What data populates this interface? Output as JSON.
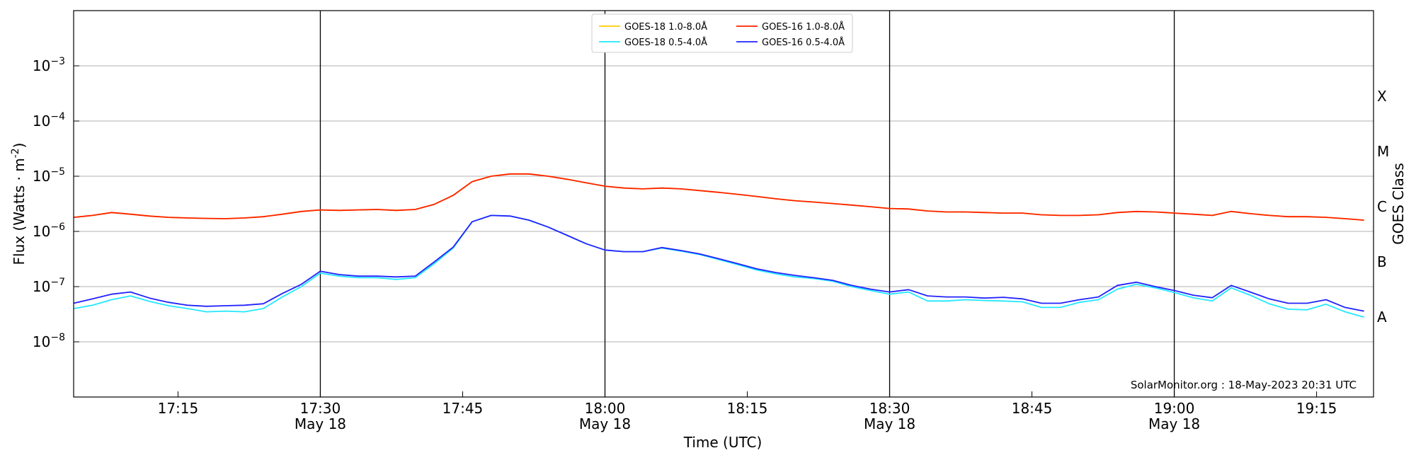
{
  "chart_data": {
    "type": "line",
    "xlabel": "Time (UTC)",
    "ylabel": "Flux (Watts · m",
    "ylabel_sup": "-2",
    "ylabel_close": ")",
    "right_label": "GOES Class",
    "log_y": true,
    "grid": "horizontal",
    "legend_position": "top-center",
    "credit": "SolarMonitor.org : 18-May-2023 20:31 UTC",
    "x_range": [
      "17:04",
      "19:21"
    ],
    "ylim": [
      1e-09,
      0.01
    ],
    "y_ticks": [
      {
        "value": 1e-08,
        "base": "10",
        "exp": "−8"
      },
      {
        "value": 1e-07,
        "base": "10",
        "exp": "−7"
      },
      {
        "value": 1e-06,
        "base": "10",
        "exp": "−6"
      },
      {
        "value": 1e-05,
        "base": "10",
        "exp": "−5"
      },
      {
        "value": 0.0001,
        "base": "10",
        "exp": "−4"
      },
      {
        "value": 0.001,
        "base": "10",
        "exp": "−3"
      }
    ],
    "x_ticks": [
      {
        "time": "17:15",
        "label": "17:15",
        "sub": ""
      },
      {
        "time": "17:30",
        "label": "17:30",
        "sub": "May 18"
      },
      {
        "time": "17:45",
        "label": "17:45",
        "sub": ""
      },
      {
        "time": "18:00",
        "label": "18:00",
        "sub": "May 18"
      },
      {
        "time": "18:15",
        "label": "18:15",
        "sub": ""
      },
      {
        "time": "18:30",
        "label": "18:30",
        "sub": "May 18"
      },
      {
        "time": "18:45",
        "label": "18:45",
        "sub": ""
      },
      {
        "time": "19:00",
        "label": "19:00",
        "sub": "May 18"
      },
      {
        "time": "19:15",
        "label": "19:15",
        "sub": ""
      }
    ],
    "vlines": [
      "17:30",
      "18:00",
      "18:30",
      "19:00"
    ],
    "class_labels": [
      {
        "label": "X",
        "flux": 0.00028
      },
      {
        "label": "M",
        "flux": 2.8e-05
      },
      {
        "label": "C",
        "flux": 2.8e-06
      },
      {
        "label": "B",
        "flux": 2.8e-07
      },
      {
        "label": "A",
        "flux": 2.8e-08
      }
    ],
    "legend": [
      {
        "name": "GOES-18 1.0-8.0Å",
        "color": "#ffcc00"
      },
      {
        "name": "GOES-16 1.0-8.0Å",
        "color": "#ff2200"
      },
      {
        "name": "GOES-18 0.5-4.0Å",
        "color": "#22e8ff"
      },
      {
        "name": "GOES-16 0.5-4.0Å",
        "color": "#2222ff"
      }
    ],
    "series": [
      {
        "name": "GOES-18 1.0-8.0Å",
        "color": "#ffcc00",
        "x": [
          "17:04",
          "17:06",
          "17:08",
          "17:10",
          "17:12",
          "17:14",
          "17:16",
          "17:18",
          "17:20",
          "17:22",
          "17:24",
          "17:26",
          "17:28",
          "17:30",
          "17:32",
          "17:34",
          "17:36",
          "17:38",
          "17:40",
          "17:42",
          "17:44",
          "17:46",
          "17:48",
          "17:50",
          "17:52",
          "17:54",
          "17:56",
          "17:58",
          "18:00",
          "18:02",
          "18:04",
          "18:06",
          "18:08",
          "18:10",
          "18:12",
          "18:14",
          "18:16",
          "18:18",
          "18:20",
          "18:22",
          "18:24",
          "18:26",
          "18:28",
          "18:30",
          "18:32",
          "18:34",
          "18:36",
          "18:38",
          "18:40",
          "18:42",
          "18:44",
          "18:46",
          "18:48",
          "18:50",
          "18:52",
          "18:54",
          "18:56",
          "18:58",
          "19:00",
          "19:02",
          "19:04",
          "19:06",
          "19:08",
          "19:10",
          "19:12",
          "19:14",
          "19:16",
          "19:18",
          "19:20"
        ],
        "y": [
          1.8e-06,
          1.95e-06,
          2.2e-06,
          2.05e-06,
          1.9e-06,
          1.8e-06,
          1.75e-06,
          1.72e-06,
          1.7e-06,
          1.75e-06,
          1.85e-06,
          2.05e-06,
          2.3e-06,
          2.45e-06,
          2.4e-06,
          2.45e-06,
          2.5e-06,
          2.4e-06,
          2.5e-06,
          3.1e-06,
          4.5e-06,
          8e-06,
          1e-05,
          1.1e-05,
          1.1e-05,
          1e-05,
          8.8e-06,
          7.6e-06,
          6.6e-06,
          6.1e-06,
          5.9e-06,
          6.1e-06,
          5.9e-06,
          5.5e-06,
          5.1e-06,
          4.7e-06,
          4.3e-06,
          3.9e-06,
          3.6e-06,
          3.4e-06,
          3.2e-06,
          3e-06,
          2.8e-06,
          2.6e-06,
          2.55e-06,
          2.35e-06,
          2.25e-06,
          2.25e-06,
          2.2e-06,
          2.15e-06,
          2.15e-06,
          2e-06,
          1.95e-06,
          1.95e-06,
          2e-06,
          2.2e-06,
          2.3e-06,
          2.25e-06,
          2.15e-06,
          2.05e-06,
          1.95e-06,
          2.3e-06,
          2.1e-06,
          1.95e-06,
          1.85e-06,
          1.85e-06,
          1.8e-06,
          1.7e-06,
          1.6e-06
        ]
      },
      {
        "name": "GOES-16 1.0-8.0Å",
        "color": "#ff2200",
        "x": [
          "17:04",
          "17:06",
          "17:08",
          "17:10",
          "17:12",
          "17:14",
          "17:16",
          "17:18",
          "17:20",
          "17:22",
          "17:24",
          "17:26",
          "17:28",
          "17:30",
          "17:32",
          "17:34",
          "17:36",
          "17:38",
          "17:40",
          "17:42",
          "17:44",
          "17:46",
          "17:48",
          "17:50",
          "17:52",
          "17:54",
          "17:56",
          "17:58",
          "18:00",
          "18:02",
          "18:04",
          "18:06",
          "18:08",
          "18:10",
          "18:12",
          "18:14",
          "18:16",
          "18:18",
          "18:20",
          "18:22",
          "18:24",
          "18:26",
          "18:28",
          "18:30",
          "18:32",
          "18:34",
          "18:36",
          "18:38",
          "18:40",
          "18:42",
          "18:44",
          "18:46",
          "18:48",
          "18:50",
          "18:52",
          "18:54",
          "18:56",
          "18:58",
          "19:00",
          "19:02",
          "19:04",
          "19:06",
          "19:08",
          "19:10",
          "19:12",
          "19:14",
          "19:16",
          "19:18",
          "19:20"
        ],
        "y": [
          1.8e-06,
          1.95e-06,
          2.2e-06,
          2.05e-06,
          1.9e-06,
          1.8e-06,
          1.75e-06,
          1.72e-06,
          1.7e-06,
          1.75e-06,
          1.85e-06,
          2.05e-06,
          2.3e-06,
          2.45e-06,
          2.4e-06,
          2.45e-06,
          2.5e-06,
          2.4e-06,
          2.5e-06,
          3.1e-06,
          4.5e-06,
          8e-06,
          1e-05,
          1.1e-05,
          1.1e-05,
          1e-05,
          8.8e-06,
          7.6e-06,
          6.6e-06,
          6.1e-06,
          5.9e-06,
          6.1e-06,
          5.9e-06,
          5.5e-06,
          5.1e-06,
          4.7e-06,
          4.3e-06,
          3.9e-06,
          3.6e-06,
          3.4e-06,
          3.2e-06,
          3e-06,
          2.8e-06,
          2.6e-06,
          2.55e-06,
          2.35e-06,
          2.25e-06,
          2.25e-06,
          2.2e-06,
          2.15e-06,
          2.15e-06,
          2e-06,
          1.95e-06,
          1.95e-06,
          2e-06,
          2.2e-06,
          2.3e-06,
          2.25e-06,
          2.15e-06,
          2.05e-06,
          1.95e-06,
          2.3e-06,
          2.1e-06,
          1.95e-06,
          1.85e-06,
          1.85e-06,
          1.8e-06,
          1.7e-06,
          1.6e-06
        ]
      },
      {
        "name": "GOES-18 0.5-4.0Å",
        "color": "#22e8ff",
        "x": [
          "17:04",
          "17:06",
          "17:08",
          "17:10",
          "17:12",
          "17:14",
          "17:16",
          "17:18",
          "17:20",
          "17:22",
          "17:24",
          "17:26",
          "17:28",
          "17:30",
          "17:32",
          "17:34",
          "17:36",
          "17:38",
          "17:40",
          "17:42",
          "17:44",
          "17:46",
          "17:48",
          "17:50",
          "17:52",
          "17:54",
          "17:56",
          "17:58",
          "18:00",
          "18:02",
          "18:04",
          "18:06",
          "18:08",
          "18:10",
          "18:12",
          "18:14",
          "18:16",
          "18:18",
          "18:20",
          "18:22",
          "18:24",
          "18:26",
          "18:28",
          "18:30",
          "18:32",
          "18:34",
          "18:36",
          "18:38",
          "18:40",
          "18:42",
          "18:44",
          "18:46",
          "18:48",
          "18:50",
          "18:52",
          "18:54",
          "18:56",
          "18:58",
          "19:00",
          "19:02",
          "19:04",
          "19:06",
          "19:08",
          "19:10",
          "19:12",
          "19:14",
          "19:16",
          "19:18",
          "19:20"
        ],
        "y": [
          4e-08,
          4.6e-08,
          5.8e-08,
          6.8e-08,
          5.4e-08,
          4.5e-08,
          4e-08,
          3.5e-08,
          3.6e-08,
          3.5e-08,
          4e-08,
          6.5e-08,
          1e-07,
          1.75e-07,
          1.55e-07,
          1.45e-07,
          1.45e-07,
          1.35e-07,
          1.45e-07,
          2.6e-07,
          5e-07,
          1.5e-06,
          1.95e-06,
          1.9e-06,
          1.6e-06,
          1.2e-06,
          8.5e-07,
          6e-07,
          4.6e-07,
          4.3e-07,
          4.3e-07,
          5e-07,
          4.4e-07,
          3.8e-07,
          3.1e-07,
          2.5e-07,
          2e-07,
          1.7e-07,
          1.5e-07,
          1.4e-07,
          1.25e-07,
          1e-07,
          8.5e-08,
          7.3e-08,
          8e-08,
          5.5e-08,
          5.5e-08,
          5.8e-08,
          5.6e-08,
          5.5e-08,
          5.3e-08,
          4.2e-08,
          4.2e-08,
          5.2e-08,
          5.8e-08,
          9e-08,
          1.1e-07,
          9.5e-08,
          7.8e-08,
          6.3e-08,
          5.5e-08,
          9.5e-08,
          7e-08,
          4.9e-08,
          3.9e-08,
          3.8e-08,
          4.8e-08,
          3.5e-08,
          2.8e-08
        ]
      },
      {
        "name": "GOES-16 0.5-4.0Å",
        "color": "#2222ff",
        "x": [
          "17:04",
          "17:06",
          "17:08",
          "17:10",
          "17:12",
          "17:14",
          "17:16",
          "17:18",
          "17:20",
          "17:22",
          "17:24",
          "17:26",
          "17:28",
          "17:30",
          "17:32",
          "17:34",
          "17:36",
          "17:38",
          "17:40",
          "17:42",
          "17:44",
          "17:46",
          "17:48",
          "17:50",
          "17:52",
          "17:54",
          "17:56",
          "17:58",
          "18:00",
          "18:02",
          "18:04",
          "18:06",
          "18:08",
          "18:10",
          "18:12",
          "18:14",
          "18:16",
          "18:18",
          "18:20",
          "18:22",
          "18:24",
          "18:26",
          "18:28",
          "18:30",
          "18:32",
          "18:34",
          "18:36",
          "18:38",
          "18:40",
          "18:42",
          "18:44",
          "18:46",
          "18:48",
          "18:50",
          "18:52",
          "18:54",
          "18:56",
          "18:58",
          "19:00",
          "19:02",
          "19:04",
          "19:06",
          "19:08",
          "19:10",
          "19:12",
          "19:14",
          "19:16",
          "19:18",
          "19:20"
        ],
        "y": [
          5e-08,
          6e-08,
          7.3e-08,
          8e-08,
          6.2e-08,
          5.2e-08,
          4.6e-08,
          4.4e-08,
          4.5e-08,
          4.6e-08,
          4.9e-08,
          7.5e-08,
          1.1e-07,
          1.9e-07,
          1.65e-07,
          1.55e-07,
          1.55e-07,
          1.5e-07,
          1.55e-07,
          2.8e-07,
          5.2e-07,
          1.5e-06,
          1.95e-06,
          1.9e-06,
          1.6e-06,
          1.2e-06,
          8.5e-07,
          6e-07,
          4.6e-07,
          4.3e-07,
          4.3e-07,
          5.1e-07,
          4.5e-07,
          3.9e-07,
          3.2e-07,
          2.6e-07,
          2.1e-07,
          1.8e-07,
          1.6e-07,
          1.45e-07,
          1.3e-07,
          1.05e-07,
          9e-08,
          8e-08,
          8.8e-08,
          6.8e-08,
          6.5e-08,
          6.5e-08,
          6.2e-08,
          6.4e-08,
          6e-08,
          5e-08,
          5e-08,
          5.8e-08,
          6.5e-08,
          1.05e-07,
          1.2e-07,
          1e-07,
          8.5e-08,
          7e-08,
          6.3e-08,
          1.05e-07,
          8e-08,
          6e-08,
          5e-08,
          5e-08,
          5.8e-08,
          4.2e-08,
          3.6e-08
        ]
      }
    ]
  }
}
